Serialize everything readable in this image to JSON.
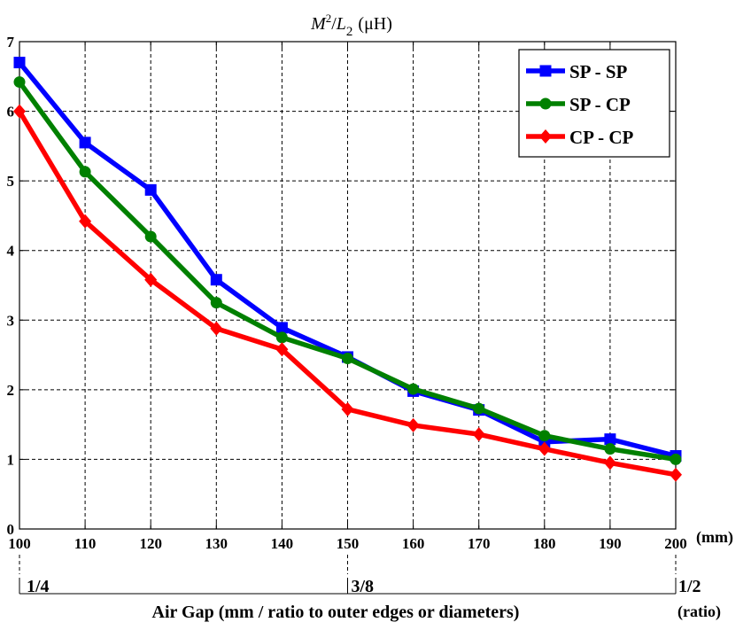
{
  "chart_data": {
    "type": "line",
    "title": {
      "m": "M",
      "sup": "2",
      "slash": "/",
      "l": "L",
      "sub": "2",
      "unit": "(μH)"
    },
    "xlabel": "Air Gap (mm / ratio to outer edges or diameters)",
    "x_unit_label": "(mm)",
    "ratio_unit_label": "(ratio)",
    "x": [
      100,
      110,
      120,
      130,
      140,
      150,
      160,
      170,
      180,
      190,
      200
    ],
    "x_ticks": [
      "100",
      "110",
      "120",
      "130",
      "140",
      "150",
      "160",
      "170",
      "180",
      "190",
      "200"
    ],
    "y_ticks": [
      "0",
      "1",
      "2",
      "3",
      "4",
      "5",
      "6",
      "7"
    ],
    "xlim": [
      100,
      200
    ],
    "ylim": [
      0,
      7
    ],
    "grid": true,
    "legend_position": "top-right",
    "ratio_labels": [
      {
        "at": 100,
        "text": "1/4"
      },
      {
        "at": 150,
        "text": "3/8"
      },
      {
        "at": 200,
        "text": "1/2"
      }
    ],
    "series": [
      {
        "name": "SP - SP",
        "color": "#0000ff",
        "marker": "square",
        "values": [
          6.7,
          5.55,
          4.87,
          3.58,
          2.89,
          2.47,
          1.98,
          1.71,
          1.25,
          1.29,
          1.05
        ]
      },
      {
        "name": "SP - CP",
        "color": "#008000",
        "marker": "circle",
        "values": [
          6.42,
          5.13,
          4.2,
          3.25,
          2.75,
          2.45,
          2.01,
          1.73,
          1.34,
          1.15,
          1.0
        ]
      },
      {
        "name": "CP - CP",
        "color": "#ff0000",
        "marker": "diamond",
        "values": [
          6.0,
          4.42,
          3.58,
          2.88,
          2.58,
          1.72,
          1.49,
          1.36,
          1.15,
          0.95,
          0.78
        ]
      }
    ]
  }
}
